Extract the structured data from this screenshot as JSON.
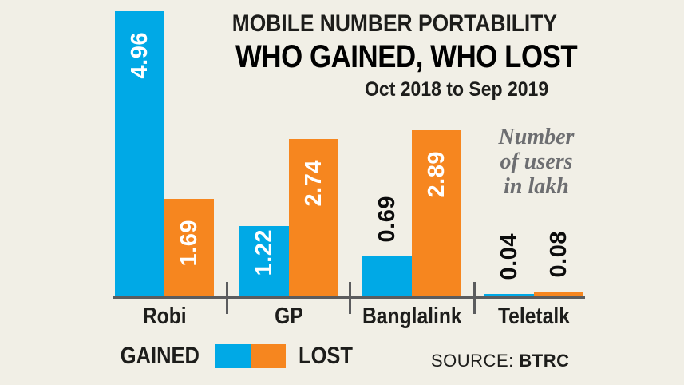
{
  "title": {
    "line1": "MOBILE NUMBER PORTABILITY",
    "line2": "WHO GAINED, WHO LOST",
    "line3": "Oct 2018 to Sep 2019"
  },
  "note": {
    "lines": [
      "Number",
      "of users",
      "in lakh"
    ]
  },
  "legend": {
    "gained_label": "GAINED",
    "lost_label": "LOST"
  },
  "source": {
    "label": "SOURCE:",
    "value": "BTRC"
  },
  "colors": {
    "gained": "#00a9e6",
    "lost": "#f6861f",
    "axis": "#5b5c5e",
    "background": "#f1efe6",
    "text": "#1d1d1b",
    "note_text": "#6d6e71"
  },
  "chart_data": {
    "type": "bar",
    "title": "MOBILE NUMBER PORTABILITY — WHO GAINED, WHO LOST",
    "subtitle": "Oct 2018 to Sep 2019",
    "ylabel": "Number of users in lakh",
    "categories": [
      "Robi",
      "GP",
      "Banglalink",
      "Teletalk"
    ],
    "series": [
      {
        "name": "GAINED",
        "color": "#00a9e6",
        "values": [
          4.96,
          1.22,
          0.69,
          0.04
        ]
      },
      {
        "name": "LOST",
        "color": "#f6861f",
        "values": [
          1.69,
          2.74,
          2.89,
          0.08
        ]
      }
    ],
    "ylim": [
      0,
      5
    ],
    "grid": false,
    "legend_position": "bottom",
    "value_labels": true
  }
}
